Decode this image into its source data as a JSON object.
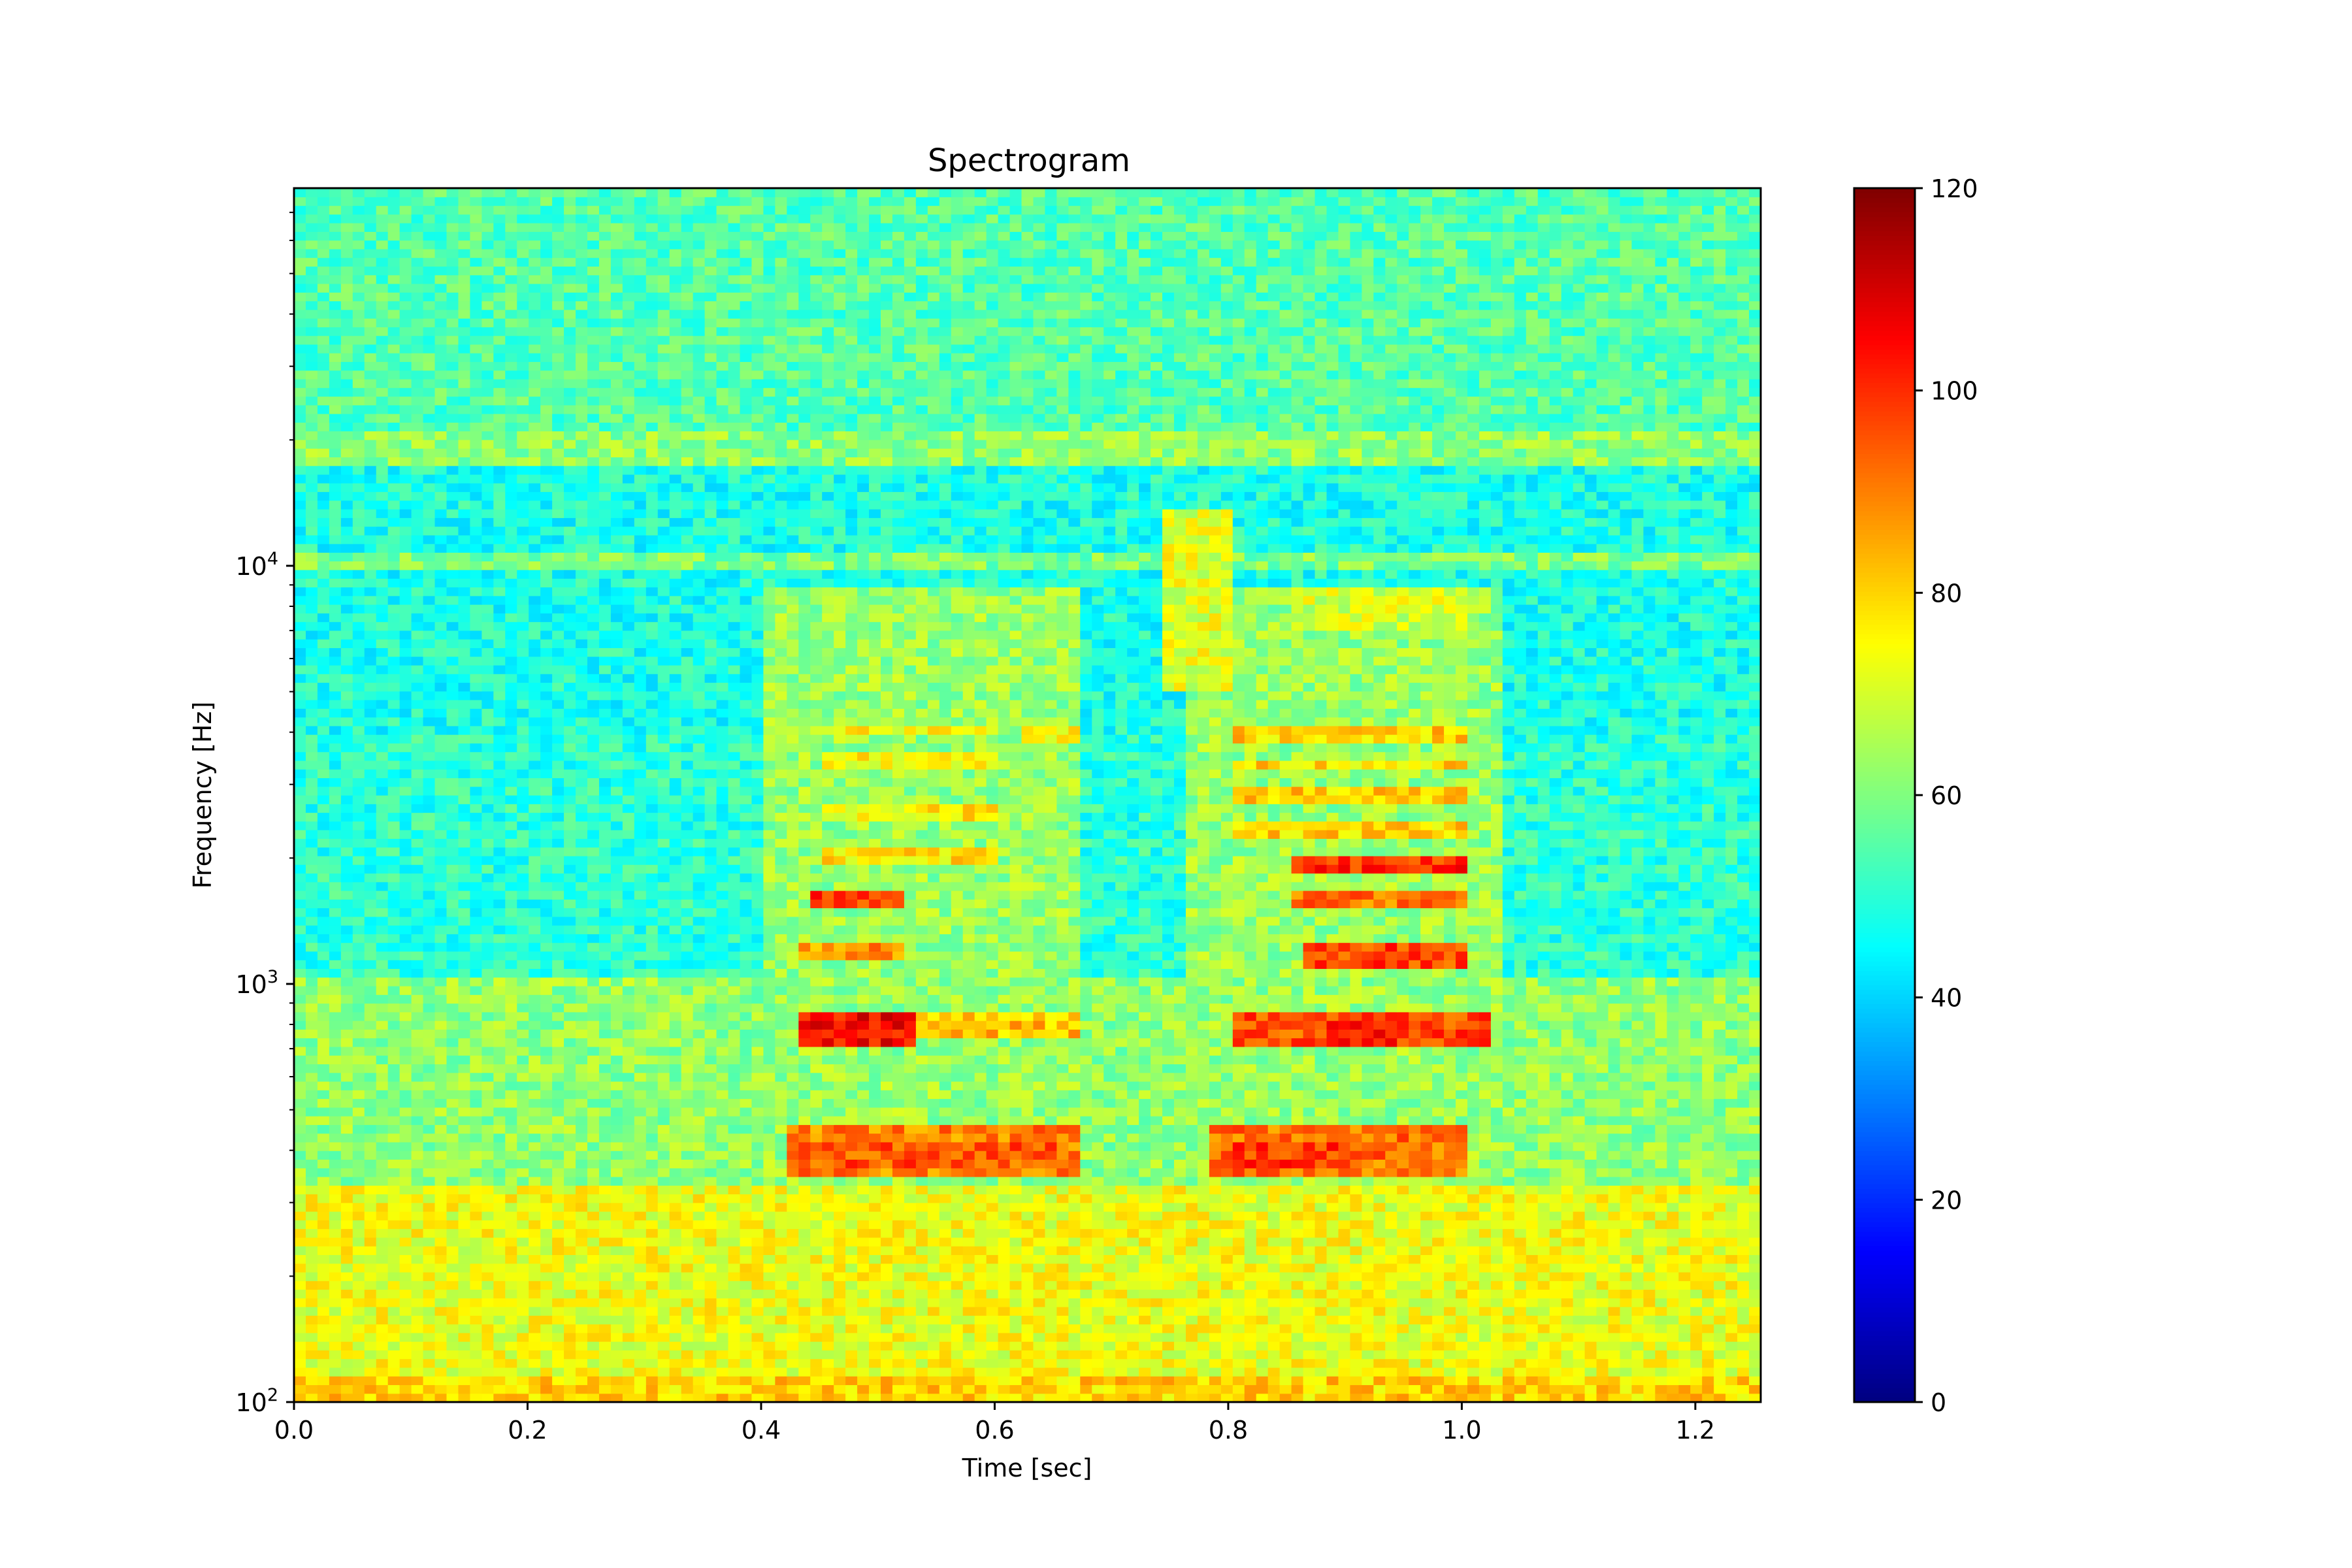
{
  "chart_data": {
    "type": "heatmap",
    "title": "Spectrogram",
    "xlabel": "Time [sec]",
    "ylabel": "Frequency [Hz]",
    "x_range": [
      0.0,
      1.256
    ],
    "y_range": [
      100,
      80000
    ],
    "y_scale": "log",
    "x_ticks": [
      "0.0",
      "0.2",
      "0.4",
      "0.6",
      "0.8",
      "1.0",
      "1.2"
    ],
    "x_tick_values": [
      0.0,
      0.2,
      0.4,
      0.6,
      0.8,
      1.0,
      1.2
    ],
    "y_ticks": [
      {
        "value": 100,
        "base": "10",
        "exp": "2"
      },
      {
        "value": 1000,
        "base": "10",
        "exp": "3"
      },
      {
        "value": 10000,
        "base": "10",
        "exp": "4"
      }
    ],
    "colormap": "jet",
    "colorbar": {
      "range": [
        0,
        120
      ],
      "ticks": [
        "0",
        "20",
        "40",
        "60",
        "80",
        "100",
        "120"
      ],
      "tick_values": [
        0,
        20,
        40,
        60,
        80,
        100,
        120
      ]
    },
    "time_bins": 125,
    "freq_bins": 140,
    "background_level_db": 55,
    "noise_db": 8,
    "regions": [
      {
        "t": [
          0.0,
          1.256
        ],
        "f": [
          100,
          330
        ],
        "db": 73
      },
      {
        "t": [
          0.0,
          1.256
        ],
        "f": [
          100,
          115
        ],
        "db": 80
      },
      {
        "t": [
          0.0,
          1.256
        ],
        "f": [
          330,
          1000
        ],
        "db": 62
      },
      {
        "t": [
          0.0,
          1.256
        ],
        "f": [
          1000,
          1050
        ],
        "db": 63
      },
      {
        "t": [
          0.0,
          1.256
        ],
        "f": [
          1050,
          4000
        ],
        "db": 50
      },
      {
        "t": [
          0.0,
          1.256
        ],
        "f": [
          4000,
          17000
        ],
        "db": 48
      },
      {
        "t": [
          0.0,
          1.256
        ],
        "f": [
          9800,
          10800
        ],
        "db": 60
      },
      {
        "t": [
          0.0,
          1.256
        ],
        "f": [
          17000,
          21000
        ],
        "db": 62
      },
      {
        "t": [
          0.0,
          1.256
        ],
        "f": [
          21000,
          80000
        ],
        "db": 55
      },
      {
        "t": [
          0.4,
          0.67
        ],
        "f": [
          330,
          9000
        ],
        "db": 63
      },
      {
        "t": [
          0.76,
          1.03
        ],
        "f": [
          330,
          9000
        ],
        "db": 63
      },
      {
        "t": [
          0.74,
          0.8
        ],
        "f": [
          5000,
          14000
        ],
        "db": 72
      },
      {
        "t": [
          0.42,
          0.67
        ],
        "f": [
          350,
          460
        ],
        "db": 90
      },
      {
        "t": [
          0.43,
          0.66
        ],
        "f": [
          360,
          420
        ],
        "db": 95
      },
      {
        "t": [
          0.78,
          1.0
        ],
        "f": [
          350,
          460
        ],
        "db": 92
      },
      {
        "t": [
          0.8,
          0.9
        ],
        "f": [
          360,
          420
        ],
        "db": 98
      },
      {
        "t": [
          0.43,
          0.53
        ],
        "f": [
          720,
          840
        ],
        "db": 105
      },
      {
        "t": [
          0.53,
          0.67
        ],
        "f": [
          760,
          840
        ],
        "db": 82
      },
      {
        "t": [
          0.8,
          1.02
        ],
        "f": [
          720,
          840
        ],
        "db": 96
      },
      {
        "t": [
          0.88,
          0.94
        ],
        "f": [
          700,
          800
        ],
        "db": 105
      },
      {
        "t": [
          0.44,
          0.52
        ],
        "f": [
          1500,
          1650
        ],
        "db": 98
      },
      {
        "t": [
          0.43,
          0.52
        ],
        "f": [
          1150,
          1250
        ],
        "db": 88
      },
      {
        "t": [
          0.86,
          1.0
        ],
        "f": [
          1100,
          1250
        ],
        "db": 97
      },
      {
        "t": [
          0.85,
          1.0
        ],
        "f": [
          1500,
          1650
        ],
        "db": 92
      },
      {
        "t": [
          0.85,
          1.0
        ],
        "f": [
          1850,
          2050
        ],
        "db": 100
      },
      {
        "t": [
          0.45,
          0.6
        ],
        "f": [
          1900,
          2100
        ],
        "db": 78
      },
      {
        "t": [
          0.45,
          0.6
        ],
        "f": [
          2400,
          2700
        ],
        "db": 76
      },
      {
        "t": [
          0.45,
          0.6
        ],
        "f": [
          3300,
          3600
        ],
        "db": 76
      },
      {
        "t": [
          0.45,
          0.6
        ],
        "f": [
          3900,
          4200
        ],
        "db": 76
      },
      {
        "t": [
          0.62,
          0.67
        ],
        "f": [
          3700,
          4200
        ],
        "db": 76
      },
      {
        "t": [
          0.8,
          1.0
        ],
        "f": [
          2200,
          2500
        ],
        "db": 80
      },
      {
        "t": [
          0.8,
          1.0
        ],
        "f": [
          2700,
          3000
        ],
        "db": 80
      },
      {
        "t": [
          0.8,
          1.0
        ],
        "f": [
          3200,
          3500
        ],
        "db": 79
      },
      {
        "t": [
          0.8,
          1.0
        ],
        "f": [
          3800,
          4100
        ],
        "db": 80
      },
      {
        "t": [
          0.85,
          1.0
        ],
        "f": [
          7000,
          9000
        ],
        "db": 70
      }
    ]
  }
}
